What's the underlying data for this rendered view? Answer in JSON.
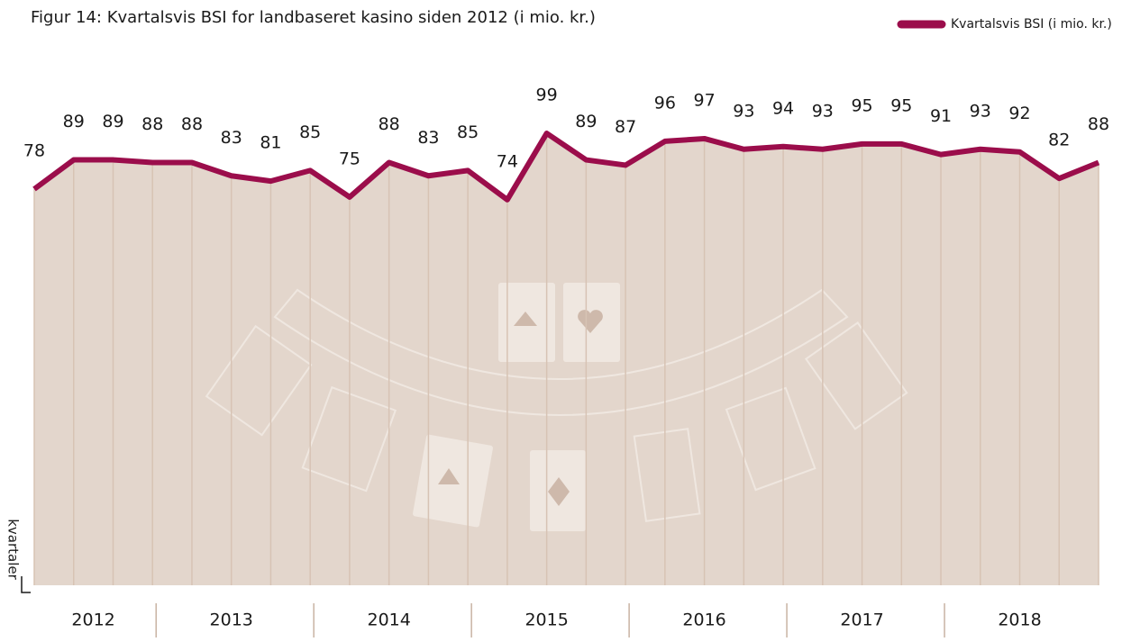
{
  "chart_data": {
    "type": "line",
    "title": "Figur 14: Kvartalsvis BSI for landbaseret kasino siden 2012 (i mio. kr.)",
    "x_axis_label": "kvartaler",
    "categories": [
      null,
      null,
      null,
      null,
      null,
      null,
      null,
      null,
      null,
      null,
      null,
      null,
      null,
      null,
      null,
      null,
      null,
      null,
      null,
      null,
      null,
      null,
      null,
      null,
      null,
      null,
      null,
      null
    ],
    "groups": [
      "2012",
      "2013",
      "2014",
      "2015",
      "2016",
      "2017",
      "2018"
    ],
    "series": [
      {
        "name": "Kvartalsvis BSI (i mio. kr.)",
        "color": "#9b0d4b",
        "values": [
          78,
          89,
          89,
          88,
          88,
          83,
          81,
          85,
          75,
          88,
          83,
          85,
          74,
          99,
          89,
          87,
          96,
          97,
          93,
          94,
          93,
          95,
          95,
          91,
          93,
          92,
          82,
          88
        ]
      }
    ],
    "area_color": "#e3d6cc",
    "legend": "top-right"
  }
}
